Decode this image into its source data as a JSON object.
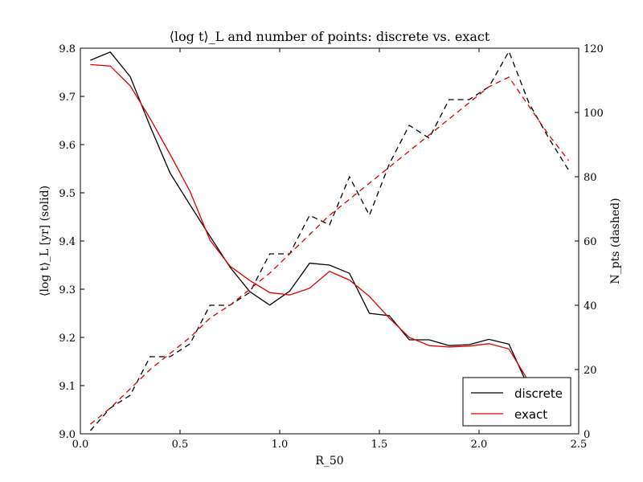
{
  "chart_data": {
    "type": "line",
    "title": "⟨log t⟩_L and number of points: discrete vs. exact",
    "xlabel": "R_50",
    "ylabel_left": "⟨log t⟩_L [yr] (solid)",
    "ylabel_right": "N_pts (dashed)",
    "xlim": [
      0.0,
      2.5
    ],
    "ylim_left": [
      9.0,
      9.8
    ],
    "ylim_right": [
      0,
      120
    ],
    "x_ticks": [
      "0.0",
      "0.5",
      "1.0",
      "1.5",
      "2.0",
      "2.5"
    ],
    "y_ticks_left": [
      "9.0",
      "9.1",
      "9.2",
      "9.3",
      "9.4",
      "9.5",
      "9.6",
      "9.7",
      "9.8"
    ],
    "y_ticks_right": [
      "0",
      "20",
      "40",
      "60",
      "80",
      "100",
      "120"
    ],
    "grid": false,
    "legend_position": "lower-right",
    "legend": [
      {
        "label": "discrete",
        "color": "#000000"
      },
      {
        "label": "exact",
        "color": "#e00000"
      }
    ],
    "series": [
      {
        "name": "discrete",
        "axis": "left",
        "style": "solid",
        "color": "#000000",
        "x": [
          0.05,
          0.15,
          0.25,
          0.35,
          0.45,
          0.55,
          0.65,
          0.75,
          0.85,
          0.95,
          1.05,
          1.15,
          1.25,
          1.35,
          1.45,
          1.55,
          1.65,
          1.75,
          1.85,
          1.95,
          2.05,
          2.15,
          2.25,
          2.35
        ],
        "y": [
          9.775,
          9.792,
          9.741,
          9.638,
          9.541,
          9.475,
          9.41,
          9.346,
          9.295,
          9.267,
          9.296,
          9.354,
          9.35,
          9.333,
          9.25,
          9.245,
          9.195,
          9.195,
          9.183,
          9.185,
          9.196,
          9.186,
          9.095,
          9.06
        ]
      },
      {
        "name": "exact",
        "axis": "left",
        "style": "solid",
        "color": "#e00000",
        "x": [
          0.05,
          0.15,
          0.25,
          0.35,
          0.45,
          0.55,
          0.65,
          0.75,
          0.85,
          0.95,
          1.05,
          1.15,
          1.25,
          1.35,
          1.45,
          1.55,
          1.65,
          1.75,
          1.85,
          1.95,
          2.05,
          2.15,
          2.25,
          2.35
        ],
        "y": [
          9.766,
          9.763,
          9.722,
          9.654,
          9.58,
          9.503,
          9.402,
          9.348,
          9.318,
          9.293,
          9.288,
          9.302,
          9.337,
          9.319,
          9.285,
          9.24,
          9.2,
          9.183,
          9.18,
          9.182,
          9.187,
          9.176,
          9.108,
          9.06
        ]
      },
      {
        "name": "discrete",
        "axis": "right",
        "style": "dashed",
        "color": "#000000",
        "x": [
          0.05,
          0.15,
          0.25,
          0.35,
          0.45,
          0.55,
          0.65,
          0.75,
          0.85,
          0.95,
          1.05,
          1.15,
          1.25,
          1.35,
          1.45,
          1.55,
          1.65,
          1.75,
          1.85,
          1.95,
          2.05,
          2.15,
          2.25,
          2.35,
          2.45
        ],
        "y": [
          1,
          8,
          12,
          24,
          24,
          28,
          40,
          40,
          44,
          56,
          56,
          68,
          65,
          80,
          68,
          84,
          96,
          92,
          104,
          104,
          108,
          119,
          103,
          92,
          82
        ]
      },
      {
        "name": "exact",
        "axis": "right",
        "style": "dashed",
        "color": "#e00000",
        "x": [
          0.05,
          0.15,
          0.25,
          0.35,
          0.45,
          0.55,
          0.65,
          0.75,
          0.85,
          0.95,
          1.05,
          1.15,
          1.25,
          1.35,
          1.45,
          1.55,
          1.65,
          1.75,
          1.85,
          1.95,
          2.05,
          2.15,
          2.25,
          2.35,
          2.45
        ],
        "y": [
          3,
          8,
          14,
          20,
          25,
          30,
          36,
          40,
          45,
          50,
          56,
          62,
          68,
          73,
          78,
          83,
          88,
          93,
          98,
          103,
          108,
          111,
          102,
          93,
          85
        ]
      }
    ]
  }
}
